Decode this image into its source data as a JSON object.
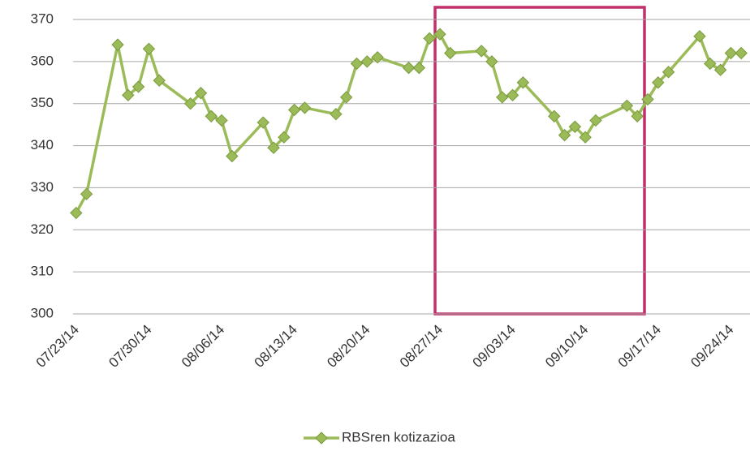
{
  "chart_data": {
    "type": "line",
    "x": [
      "07/24/14",
      "07/25/14",
      "07/28/14",
      "07/29/14",
      "07/30/14",
      "07/31/14",
      "08/01/14",
      "08/04/14",
      "08/05/14",
      "08/06/14",
      "08/07/14",
      "08/08/14",
      "08/11/14",
      "08/12/14",
      "08/13/14",
      "08/14/14",
      "08/15/14",
      "08/18/14",
      "08/19/14",
      "08/20/14",
      "08/21/14",
      "08/22/14",
      "08/25/14",
      "08/26/14",
      "08/27/14",
      "08/28/14",
      "08/29/14",
      "09/01/14",
      "09/02/14",
      "09/03/14",
      "09/04/14",
      "09/05/14",
      "09/08/14",
      "09/09/14",
      "09/10/14",
      "09/11/14",
      "09/12/14",
      "09/15/14",
      "09/16/14",
      "09/17/14",
      "09/18/14",
      "09/19/14",
      "09/22/14",
      "09/23/14",
      "09/24/14",
      "09/25/14",
      "09/26/14"
    ],
    "series": [
      {
        "name": "RBSren kotizazioa",
        "color": "#9bbb59",
        "values": [
          324,
          328.5,
          364,
          352,
          354,
          363,
          355.5,
          350,
          352.5,
          347,
          346,
          337.5,
          345.5,
          339.5,
          342,
          348.5,
          349,
          347.5,
          351.5,
          359.5,
          360,
          361,
          358.5,
          358.5,
          365.5,
          366.5,
          362,
          362.5,
          360,
          351.5,
          352,
          355,
          347,
          342.5,
          344.5,
          342,
          346,
          349.5,
          347,
          351,
          355,
          357.5,
          366,
          359.5,
          358,
          362,
          362
        ]
      }
    ],
    "xlim": [
      "07/23/14",
      "09/27/14"
    ],
    "xticks": [
      "07/23/14",
      "07/30/14",
      "08/06/14",
      "08/13/14",
      "08/20/14",
      "08/27/14",
      "09/03/14",
      "09/10/14",
      "09/17/14",
      "09/24/14"
    ],
    "ylim": [
      300,
      370
    ],
    "yticks": [
      300,
      310,
      320,
      330,
      340,
      350,
      360,
      370
    ],
    "grid": true,
    "legend": "bottom"
  }
}
